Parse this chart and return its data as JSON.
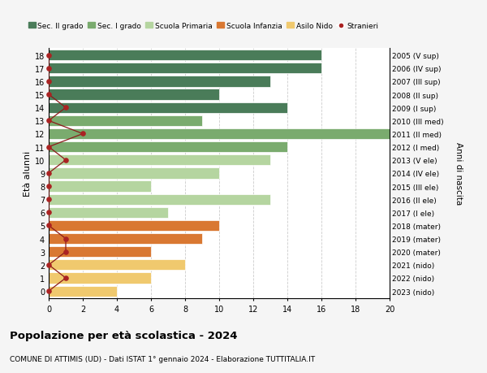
{
  "ages": [
    18,
    17,
    16,
    15,
    14,
    13,
    12,
    11,
    10,
    9,
    8,
    7,
    6,
    5,
    4,
    3,
    2,
    1,
    0
  ],
  "right_labels": [
    "2005 (V sup)",
    "2006 (IV sup)",
    "2007 (III sup)",
    "2008 (II sup)",
    "2009 (I sup)",
    "2010 (III med)",
    "2011 (II med)",
    "2012 (I med)",
    "2013 (V ele)",
    "2014 (IV ele)",
    "2015 (III ele)",
    "2016 (II ele)",
    "2017 (I ele)",
    "2018 (mater)",
    "2019 (mater)",
    "2020 (mater)",
    "2021 (nido)",
    "2022 (nido)",
    "2023 (nido)"
  ],
  "bar_values": [
    16,
    16,
    13,
    10,
    14,
    9,
    20,
    14,
    13,
    10,
    6,
    13,
    7,
    10,
    9,
    6,
    8,
    6,
    4
  ],
  "stranieri_values": [
    0,
    0,
    0,
    0,
    1,
    0,
    2,
    0,
    1,
    0,
    0,
    0,
    0,
    0,
    1,
    1,
    0,
    1,
    0
  ],
  "bar_colors": [
    "#4a7c59",
    "#4a7c59",
    "#4a7c59",
    "#4a7c59",
    "#4a7c59",
    "#7aab6e",
    "#7aab6e",
    "#7aab6e",
    "#b5d5a0",
    "#b5d5a0",
    "#b5d5a0",
    "#b5d5a0",
    "#b5d5a0",
    "#d97832",
    "#d97832",
    "#d97832",
    "#f0c96e",
    "#f0c96e",
    "#f0c96e"
  ],
  "legend_labels": [
    "Sec. II grado",
    "Sec. I grado",
    "Scuola Primaria",
    "Scuola Infanzia",
    "Asilo Nido",
    "Stranieri"
  ],
  "legend_colors": [
    "#4a7c59",
    "#7aab6e",
    "#b5d5a0",
    "#d97832",
    "#f0c96e",
    "#aa2222"
  ],
  "title": "Popolazione per età scolastica - 2024",
  "subtitle": "COMUNE DI ATTIMIS (UD) - Dati ISTAT 1° gennaio 2024 - Elaborazione TUTTITALIA.IT",
  "ylabel": "Età alunni",
  "right_ylabel": "Anni di nascita",
  "xlabel_vals": [
    0,
    2,
    4,
    6,
    8,
    10,
    12,
    14,
    16,
    18,
    20
  ],
  "xlim": [
    0,
    20
  ],
  "background_color": "#f5f5f5",
  "bar_background": "#ffffff",
  "stranieri_line_color": "#8b1a1a",
  "stranieri_dot_color": "#aa2222"
}
